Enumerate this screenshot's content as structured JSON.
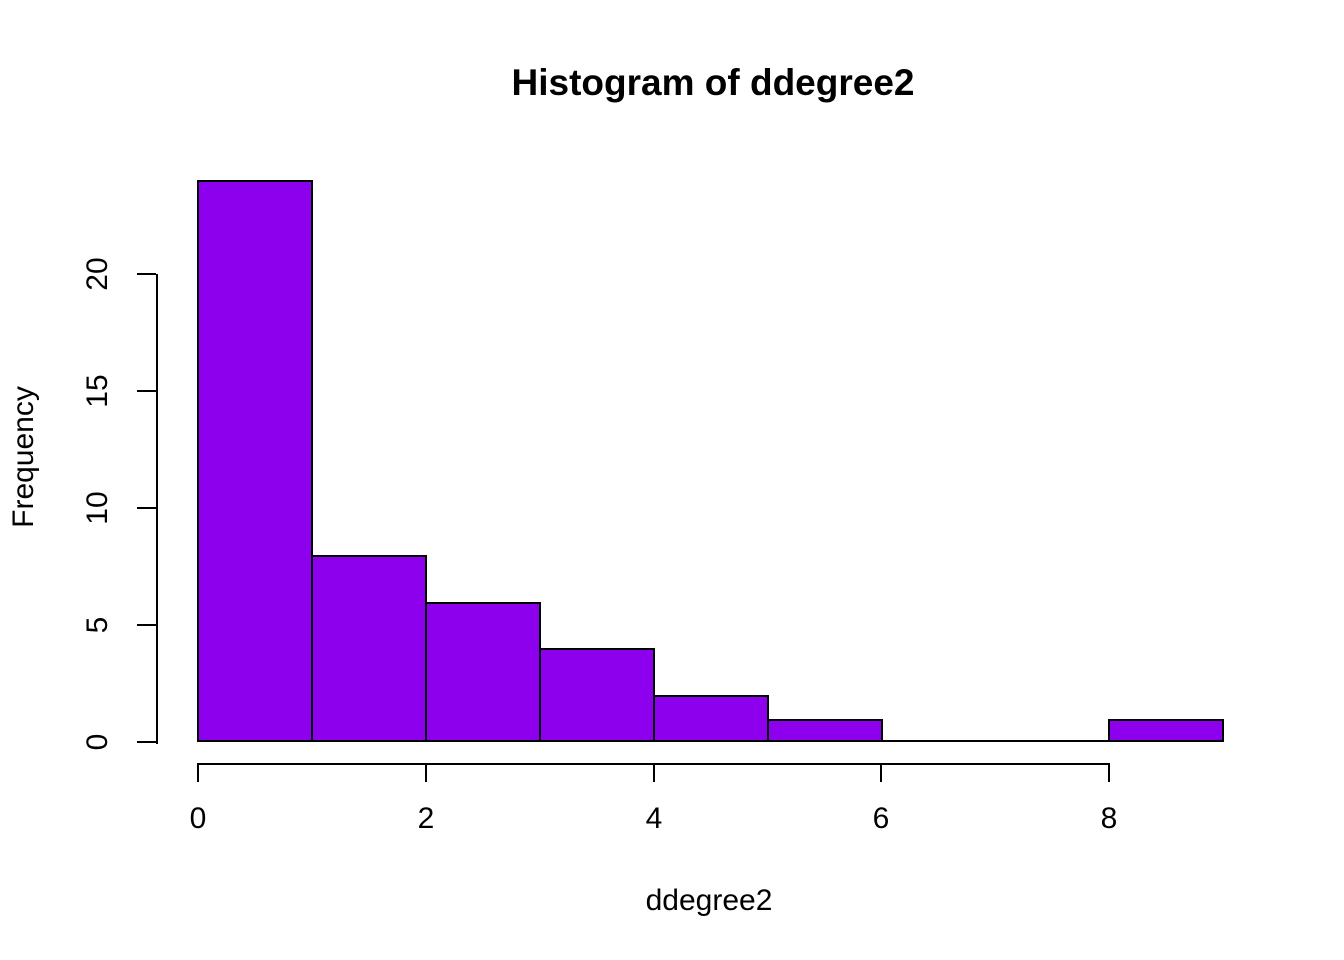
{
  "title": "Histogram of ddegree2",
  "chart_data": {
    "type": "bar",
    "subtype": "histogram",
    "title": "Histogram of ddegree2",
    "xlabel": "ddegree2",
    "ylabel": "Frequency",
    "bin_edges": [
      0,
      1,
      2,
      3,
      4,
      5,
      6,
      7,
      8,
      9
    ],
    "values": [
      24,
      8,
      6,
      4,
      2,
      1,
      0,
      0,
      1
    ],
    "x_ticks": [
      0,
      2,
      4,
      6,
      8
    ],
    "y_ticks": [
      0,
      5,
      10,
      15,
      20
    ],
    "xlim": [
      0,
      9
    ],
    "ylim": [
      0,
      24
    ],
    "grid": false,
    "legend_position": "none",
    "colors": {
      "bar_fill": "#8C00EE",
      "bar_border": "#000000",
      "axis": "#000000",
      "background": "#FFFFFF",
      "text": "#000000"
    }
  }
}
